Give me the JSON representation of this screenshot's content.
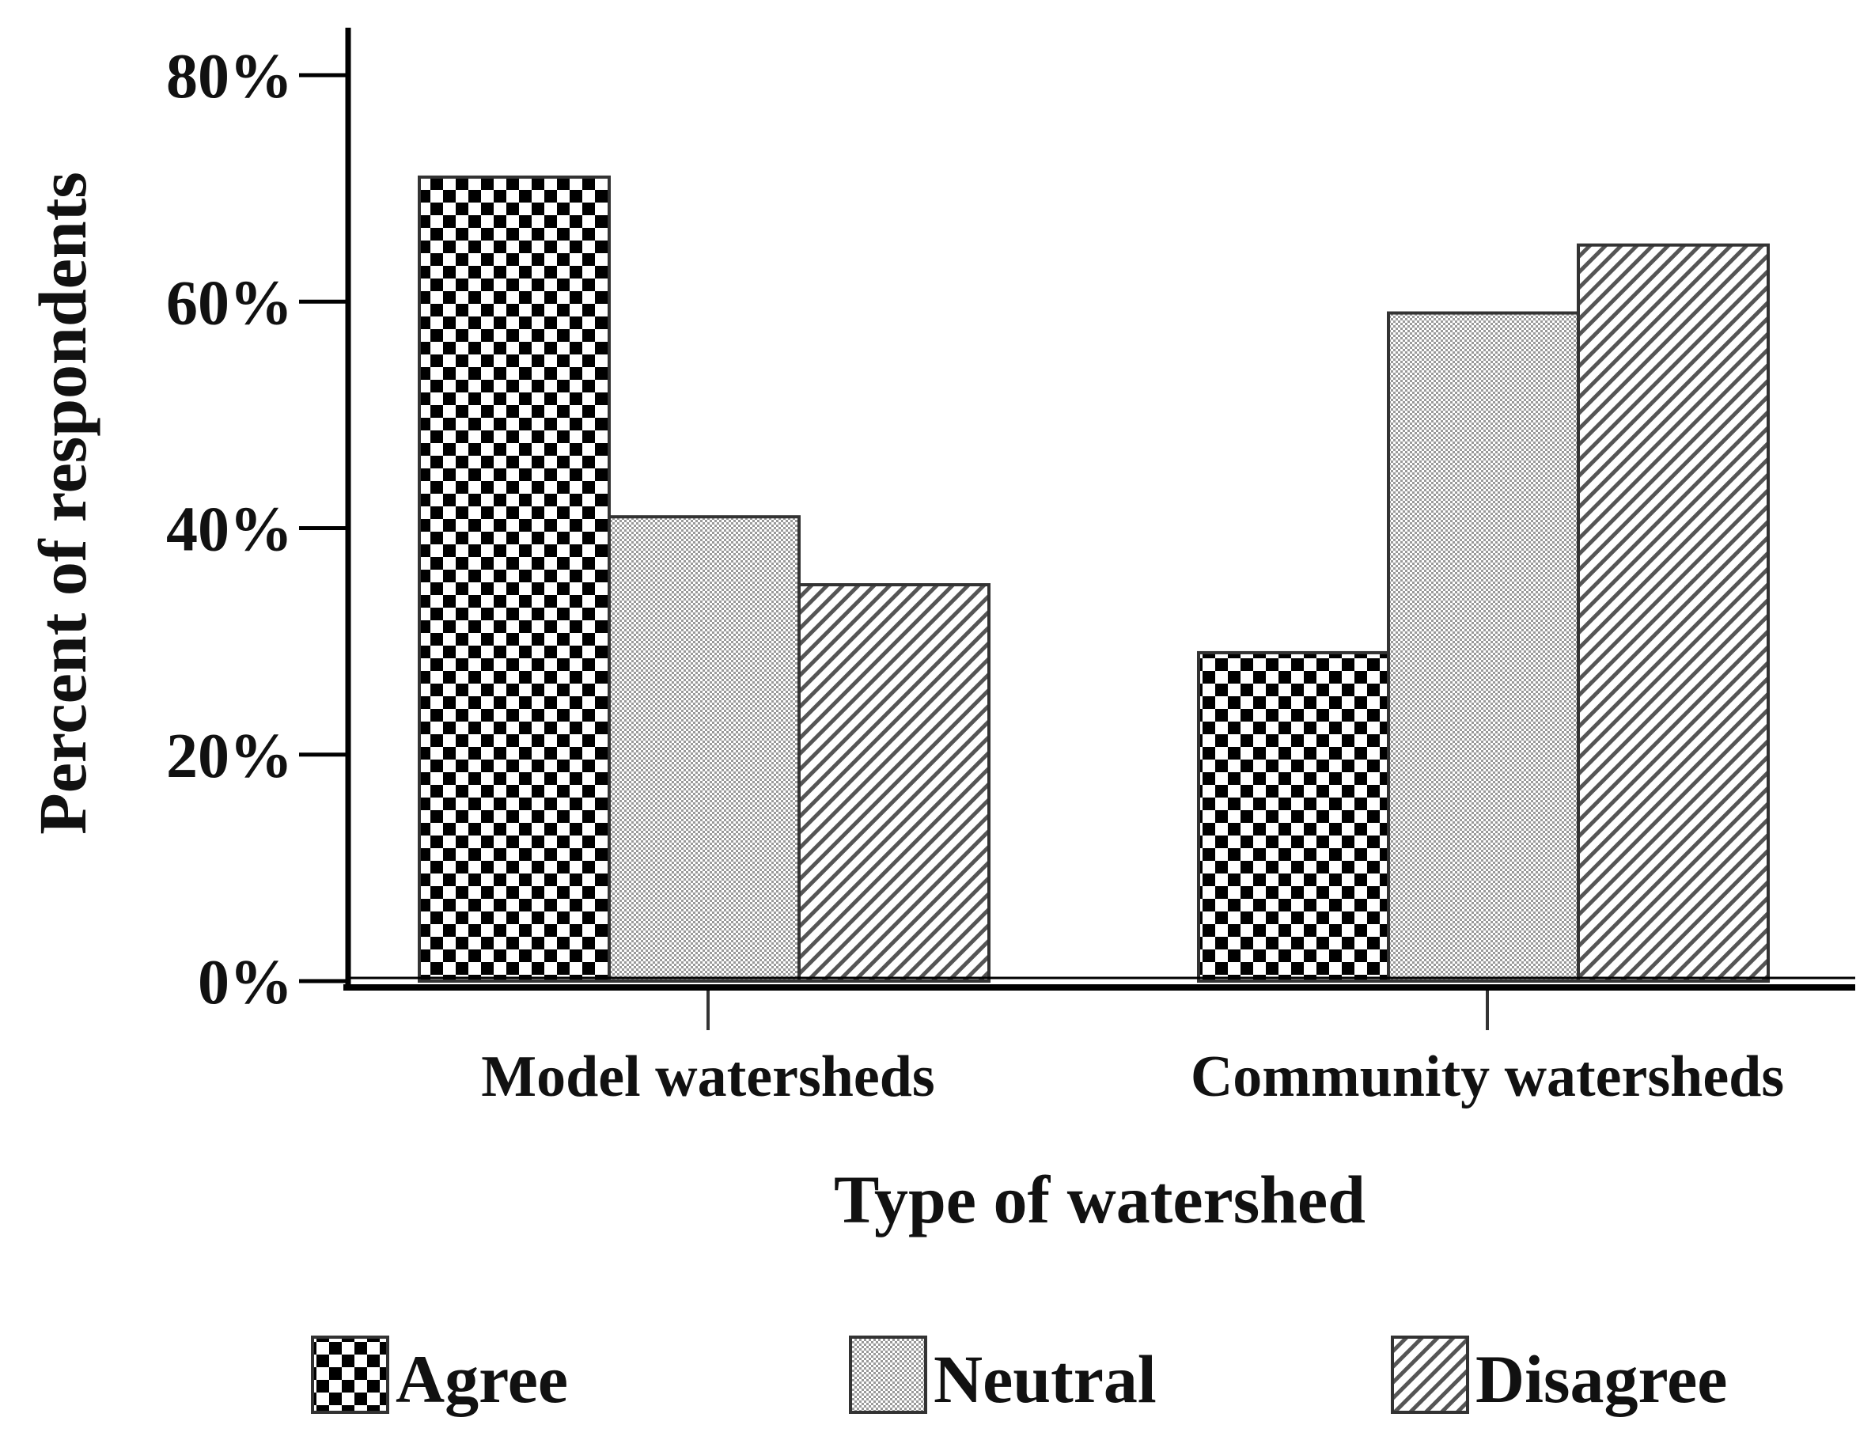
{
  "chart_data": {
    "type": "bar",
    "title": "",
    "xlabel": "Type of watershed",
    "ylabel": "Percent of respondents",
    "categories": [
      "Model watersheds",
      "Community watersheds"
    ],
    "series": [
      {
        "name": "Agree",
        "values": [
          71,
          29
        ],
        "pattern": "checker"
      },
      {
        "name": "Neutral",
        "values": [
          41,
          59
        ],
        "pattern": "dots"
      },
      {
        "name": "Disagree",
        "values": [
          35,
          65
        ],
        "pattern": "hatch"
      }
    ],
    "ylim": [
      0,
      80
    ],
    "yticks": [
      0,
      20,
      40,
      60,
      80
    ],
    "ytick_labels": [
      "0%",
      "20%",
      "40%",
      "60%",
      "80%"
    ],
    "grid": false,
    "legend_position": "bottom"
  }
}
